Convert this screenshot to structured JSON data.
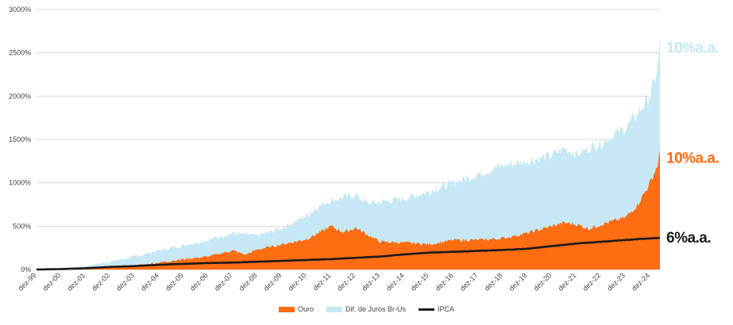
{
  "chart_data": {
    "type": "area",
    "title": "",
    "xlabel": "",
    "ylabel": "",
    "ylim": [
      0,
      3000
    ],
    "y_ticks": [
      "0%",
      "500%",
      "1000%",
      "1500%",
      "2000%",
      "2500%",
      "3000%"
    ],
    "y_tick_values": [
      0,
      500,
      1000,
      1500,
      2000,
      2500,
      3000
    ],
    "categories": [
      "dez-99",
      "dez-00",
      "dez-01",
      "dez-02",
      "dez-03",
      "dez-04",
      "dez-05",
      "dez-06",
      "dez-07",
      "dez-08",
      "dez-09",
      "dez-10",
      "dez-11",
      "dez-12",
      "dez-13",
      "dez-14",
      "dez-15",
      "dez-16",
      "dez-17",
      "dez-18",
      "dez-19",
      "dez-20",
      "dez-21",
      "dez-22",
      "dez-23",
      "dez-24"
    ],
    "x_end": 25.4,
    "series": [
      {
        "name": "Dif. de Juros Br-Us",
        "kind": "area",
        "color": "#c5e8f4",
        "end_label": "10%a.a.",
        "label_color": "#c5e8f4",
        "points": [
          [
            0,
            0
          ],
          [
            1,
            5
          ],
          [
            2,
            40
          ],
          [
            3,
            90
          ],
          [
            4,
            150
          ],
          [
            5,
            220
          ],
          [
            6,
            280
          ],
          [
            7,
            340
          ],
          [
            8,
            420
          ],
          [
            9,
            390
          ],
          [
            10,
            480
          ],
          [
            11,
            620
          ],
          [
            11.5,
            730
          ],
          [
            12,
            800
          ],
          [
            13,
            860
          ],
          [
            13.5,
            760
          ],
          [
            14,
            780
          ],
          [
            15,
            820
          ],
          [
            16,
            900
          ],
          [
            17,
            1000
          ],
          [
            18,
            1100
          ],
          [
            19,
            1200
          ],
          [
            20,
            1250
          ],
          [
            21,
            1320
          ],
          [
            21.5,
            1400
          ],
          [
            22,
            1330
          ],
          [
            22.5,
            1400
          ],
          [
            23,
            1460
          ],
          [
            23.5,
            1550
          ],
          [
            24,
            1630
          ],
          [
            24.5,
            1800
          ],
          [
            25,
            2000
          ],
          [
            25.3,
            2300
          ],
          [
            25.4,
            2620
          ]
        ]
      },
      {
        "name": "Ouro",
        "kind": "area",
        "color": "#ff6d12",
        "end_label": "10%a.a.",
        "label_color": "#ff6d12",
        "points": [
          [
            0,
            0
          ],
          [
            1,
            3
          ],
          [
            2,
            20
          ],
          [
            3,
            35
          ],
          [
            4,
            45
          ],
          [
            5,
            80
          ],
          [
            6,
            120
          ],
          [
            7,
            150
          ],
          [
            8,
            220
          ],
          [
            8.5,
            170
          ],
          [
            9,
            230
          ],
          [
            10,
            290
          ],
          [
            11,
            350
          ],
          [
            11.5,
            420
          ],
          [
            12,
            500
          ],
          [
            12.5,
            430
          ],
          [
            13,
            480
          ],
          [
            13.5,
            400
          ],
          [
            14,
            320
          ],
          [
            15,
            310
          ],
          [
            16,
            290
          ],
          [
            17,
            340
          ],
          [
            18,
            340
          ],
          [
            19,
            360
          ],
          [
            20,
            420
          ],
          [
            21,
            500
          ],
          [
            21.5,
            540
          ],
          [
            22,
            520
          ],
          [
            22.5,
            470
          ],
          [
            23,
            520
          ],
          [
            24,
            600
          ],
          [
            24.5,
            750
          ],
          [
            25,
            1000
          ],
          [
            25.3,
            1200
          ],
          [
            25.4,
            1350
          ]
        ]
      },
      {
        "name": "IPCA",
        "kind": "line",
        "color": "#1a1a1a",
        "end_label": "6%a.a.",
        "label_color": "#1a1a1a",
        "points": [
          [
            0,
            0
          ],
          [
            1,
            5
          ],
          [
            2,
            15
          ],
          [
            3,
            30
          ],
          [
            4,
            40
          ],
          [
            5,
            55
          ],
          [
            6,
            65
          ],
          [
            7,
            75
          ],
          [
            8,
            80
          ],
          [
            9,
            90
          ],
          [
            10,
            100
          ],
          [
            11,
            110
          ],
          [
            12,
            120
          ],
          [
            13,
            135
          ],
          [
            14,
            150
          ],
          [
            15,
            175
          ],
          [
            16,
            195
          ],
          [
            17,
            205
          ],
          [
            18,
            215
          ],
          [
            19,
            225
          ],
          [
            20,
            240
          ],
          [
            21,
            270
          ],
          [
            22,
            300
          ],
          [
            23,
            320
          ],
          [
            24,
            340
          ],
          [
            25,
            360
          ],
          [
            25.4,
            365
          ]
        ]
      }
    ],
    "legend_position": "bottom-center",
    "legend": [
      "Ouro",
      "Dif. de Juros Br-Us",
      "IPCA"
    ],
    "grid": true
  }
}
